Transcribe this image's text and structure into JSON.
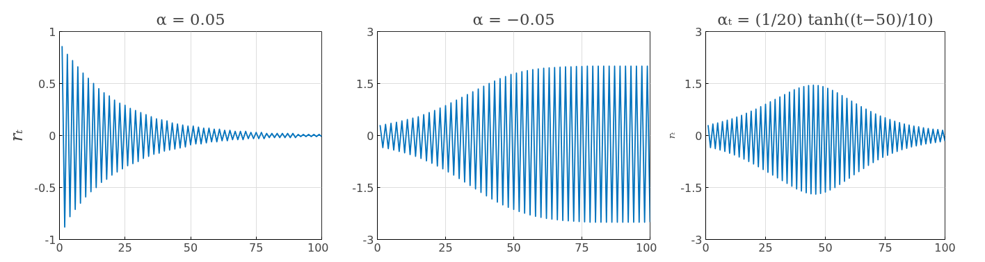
{
  "chart_data": [
    {
      "type": "line",
      "title": "α = 0.05",
      "ylabel": "rₜ",
      "x": [
        1,
        2,
        3,
        4,
        5,
        6,
        7,
        8,
        9,
        10,
        11,
        12,
        13,
        14,
        15,
        16,
        17,
        18,
        19,
        20,
        21,
        22,
        23,
        24,
        25,
        26,
        27,
        28,
        29,
        30,
        31,
        32,
        33,
        34,
        35,
        36,
        37,
        38,
        39,
        40,
        41,
        42,
        43,
        44,
        45,
        46,
        47,
        48,
        49,
        50,
        51,
        52,
        53,
        54,
        55,
        56,
        57,
        58,
        59,
        60,
        61,
        62,
        63,
        64,
        65,
        66,
        67,
        68,
        69,
        70,
        71,
        72,
        73,
        74,
        75,
        76,
        77,
        78,
        79,
        80,
        81,
        82,
        83,
        84,
        85,
        86,
        87,
        88,
        89,
        90,
        91,
        92,
        93,
        94,
        95,
        96,
        97,
        98,
        99,
        100
      ],
      "series": [
        {
          "color": "#0072bd",
          "values": [
            0.86,
            -0.88,
            0.78,
            -0.78,
            0.72,
            -0.71,
            0.66,
            -0.65,
            0.6,
            -0.59,
            0.55,
            -0.54,
            0.5,
            -0.5,
            0.45,
            -0.45,
            0.41,
            -0.42,
            0.38,
            -0.38,
            0.34,
            -0.35,
            0.31,
            -0.32,
            0.29,
            -0.29,
            0.26,
            -0.27,
            0.24,
            -0.25,
            0.22,
            -0.22,
            0.2,
            -0.2,
            0.18,
            -0.18,
            0.16,
            -0.17,
            0.15,
            -0.15,
            0.14,
            -0.14,
            0.12,
            -0.13,
            0.11,
            -0.12,
            0.1,
            -0.11,
            0.09,
            -0.09,
            0.09,
            -0.08,
            0.08,
            -0.08,
            0.07,
            -0.07,
            0.07,
            -0.06,
            0.06,
            -0.06,
            0.06,
            -0.05,
            0.05,
            -0.05,
            0.05,
            -0.04,
            0.04,
            -0.04,
            0.04,
            -0.04,
            0.04,
            -0.03,
            0.03,
            -0.03,
            0.03,
            -0.03,
            0.03,
            -0.03,
            0.02,
            -0.02,
            0.02,
            -0.02,
            0.02,
            -0.02,
            0.02,
            -0.02,
            0.02,
            -0.02,
            0.02,
            -0.02,
            0.01,
            -0.01,
            0.01,
            -0.01,
            0.01,
            -0.01,
            0.01,
            -0.01,
            0.01,
            -0.01
          ]
        }
      ],
      "xlim": [
        0,
        100
      ],
      "xticks": [
        0,
        25,
        50,
        75,
        100
      ],
      "ylim": [
        -1,
        1
      ],
      "yticks": [
        -1,
        -0.5,
        0,
        0.5,
        1
      ],
      "grid": true,
      "line_style": "solid"
    },
    {
      "type": "line",
      "title": "α = −0.05",
      "x": [
        1,
        2,
        3,
        4,
        5,
        6,
        7,
        8,
        9,
        10,
        11,
        12,
        13,
        14,
        15,
        16,
        17,
        18,
        19,
        20,
        21,
        22,
        23,
        24,
        25,
        26,
        27,
        28,
        29,
        30,
        31,
        32,
        33,
        34,
        35,
        36,
        37,
        38,
        39,
        40,
        41,
        42,
        43,
        44,
        45,
        46,
        47,
        48,
        49,
        50,
        51,
        52,
        53,
        54,
        55,
        56,
        57,
        58,
        59,
        60,
        61,
        62,
        63,
        64,
        65,
        66,
        67,
        68,
        69,
        70,
        71,
        72,
        73,
        74,
        75,
        76,
        77,
        78,
        79,
        80,
        81,
        82,
        83,
        84,
        85,
        86,
        87,
        88,
        89,
        90,
        91,
        92,
        93,
        94,
        95,
        96,
        97,
        98,
        99,
        100
      ],
      "series": [
        {
          "color": "#0072bd",
          "values": [
            0.3,
            -0.35,
            0.32,
            -0.38,
            0.35,
            -0.42,
            0.38,
            -0.46,
            0.42,
            -0.5,
            0.46,
            -0.55,
            0.5,
            -0.6,
            0.54,
            -0.66,
            0.6,
            -0.73,
            0.66,
            -0.8,
            0.72,
            -0.88,
            0.79,
            -0.96,
            0.86,
            -1.05,
            0.94,
            -1.14,
            1.02,
            -1.24,
            1.1,
            -1.34,
            1.18,
            -1.44,
            1.26,
            -1.54,
            1.34,
            -1.64,
            1.42,
            -1.74,
            1.5,
            -1.83,
            1.57,
            -1.92,
            1.64,
            -2.0,
            1.7,
            -2.07,
            1.76,
            -2.13,
            1.8,
            -2.19,
            1.84,
            -2.24,
            1.87,
            -2.29,
            1.9,
            -2.33,
            1.92,
            -2.36,
            1.94,
            -2.39,
            1.95,
            -2.41,
            1.96,
            -2.43,
            1.97,
            -2.45,
            1.98,
            -2.46,
            1.98,
            -2.47,
            1.99,
            -2.48,
            1.99,
            -2.49,
            2.0,
            -2.5,
            2.0,
            -2.5,
            2.0,
            -2.5,
            2.0,
            -2.5,
            2.0,
            -2.5,
            2.0,
            -2.5,
            2.0,
            -2.5,
            2.0,
            -2.5,
            2.0,
            -2.5,
            2.0,
            -2.5,
            2.0,
            -2.5,
            2.0,
            -2.5
          ]
        }
      ],
      "xlim": [
        0,
        100
      ],
      "xticks": [
        0,
        25,
        50,
        75,
        100
      ],
      "ylim": [
        -3,
        3
      ],
      "yticks": [
        -3,
        -1.5,
        0,
        1.5,
        3
      ],
      "grid": true,
      "line_style": "solid"
    },
    {
      "type": "line",
      "title": "αₜ = (1/20) tanh((t−50)/10)",
      "ylabel": "rₜ",
      "x": [
        1,
        2,
        3,
        4,
        5,
        6,
        7,
        8,
        9,
        10,
        11,
        12,
        13,
        14,
        15,
        16,
        17,
        18,
        19,
        20,
        21,
        22,
        23,
        24,
        25,
        26,
        27,
        28,
        29,
        30,
        31,
        32,
        33,
        34,
        35,
        36,
        37,
        38,
        39,
        40,
        41,
        42,
        43,
        44,
        45,
        46,
        47,
        48,
        49,
        50,
        51,
        52,
        53,
        54,
        55,
        56,
        57,
        58,
        59,
        60,
        61,
        62,
        63,
        64,
        65,
        66,
        67,
        68,
        69,
        70,
        71,
        72,
        73,
        74,
        75,
        76,
        77,
        78,
        79,
        80,
        81,
        82,
        83,
        84,
        85,
        86,
        87,
        88,
        89,
        90,
        91,
        92,
        93,
        94,
        95,
        96,
        97,
        98,
        99,
        100
      ],
      "series": [
        {
          "color": "#0072bd",
          "values": [
            0.3,
            -0.35,
            0.33,
            -0.38,
            0.36,
            -0.42,
            0.4,
            -0.46,
            0.44,
            -0.51,
            0.48,
            -0.56,
            0.53,
            -0.62,
            0.58,
            -0.68,
            0.64,
            -0.75,
            0.7,
            -0.82,
            0.76,
            -0.9,
            0.83,
            -0.98,
            0.9,
            -1.06,
            0.97,
            -1.14,
            1.04,
            -1.22,
            1.11,
            -1.3,
            1.18,
            -1.38,
            1.25,
            -1.46,
            1.32,
            -1.54,
            1.37,
            -1.6,
            1.41,
            -1.65,
            1.44,
            -1.68,
            1.45,
            -1.69,
            1.44,
            -1.67,
            1.41,
            -1.63,
            1.36,
            -1.57,
            1.3,
            -1.5,
            1.23,
            -1.41,
            1.15,
            -1.32,
            1.07,
            -1.23,
            0.99,
            -1.13,
            0.91,
            -1.04,
            0.83,
            -0.95,
            0.76,
            -0.86,
            0.69,
            -0.78,
            0.62,
            -0.7,
            0.56,
            -0.63,
            0.51,
            -0.57,
            0.46,
            -0.51,
            0.41,
            -0.46,
            0.37,
            -0.41,
            0.33,
            -0.37,
            0.3,
            -0.33,
            0.27,
            -0.3,
            0.25,
            -0.27,
            0.22,
            -0.24,
            0.2,
            -0.22,
            0.18,
            -0.2,
            0.17,
            -0.18,
            0.15,
            -0.16
          ]
        }
      ],
      "xlim": [
        0,
        100
      ],
      "xticks": [
        0,
        25,
        50,
        75,
        100
      ],
      "ylim": [
        -3,
        3
      ],
      "yticks": [
        -3,
        -1.5,
        0,
        1.5,
        3
      ],
      "grid": true,
      "line_style": "solid"
    }
  ]
}
